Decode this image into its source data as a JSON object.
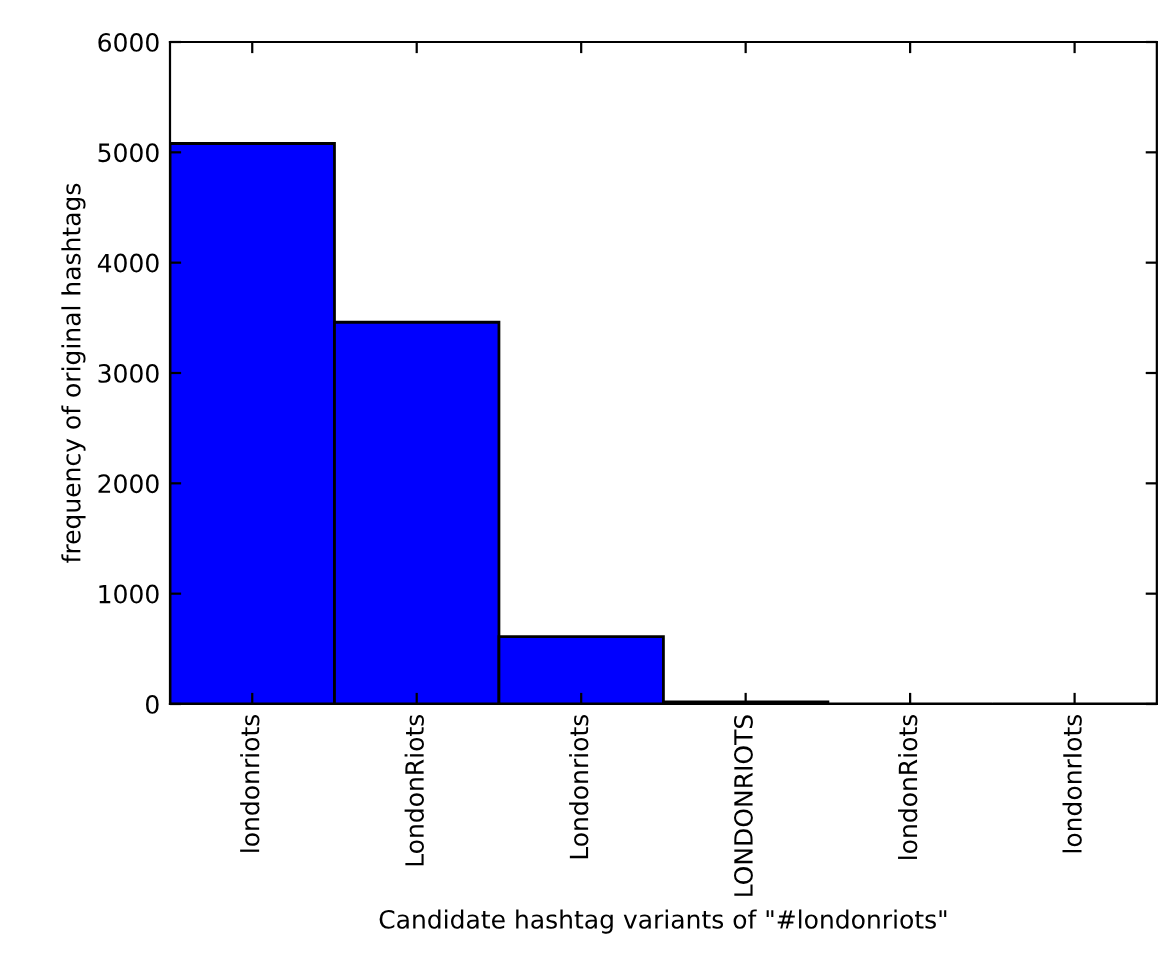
{
  "chart_data": {
    "type": "bar",
    "xlabel": "Candidate hashtag variants of \"#londonriots\"",
    "ylabel": "frequency of original hashtags",
    "categories": [
      "londonriots",
      "LondonRiots",
      "Londonriots",
      "LONDONRIOTS",
      "londonRiots",
      "londonrIots"
    ],
    "values": [
      5080,
      3460,
      610,
      20,
      0,
      0
    ],
    "color": "#0000ff",
    "ylim": [
      0,
      6000
    ],
    "yticks": [
      0,
      1000,
      2000,
      3000,
      4000,
      5000,
      6000
    ],
    "grid": false
  }
}
